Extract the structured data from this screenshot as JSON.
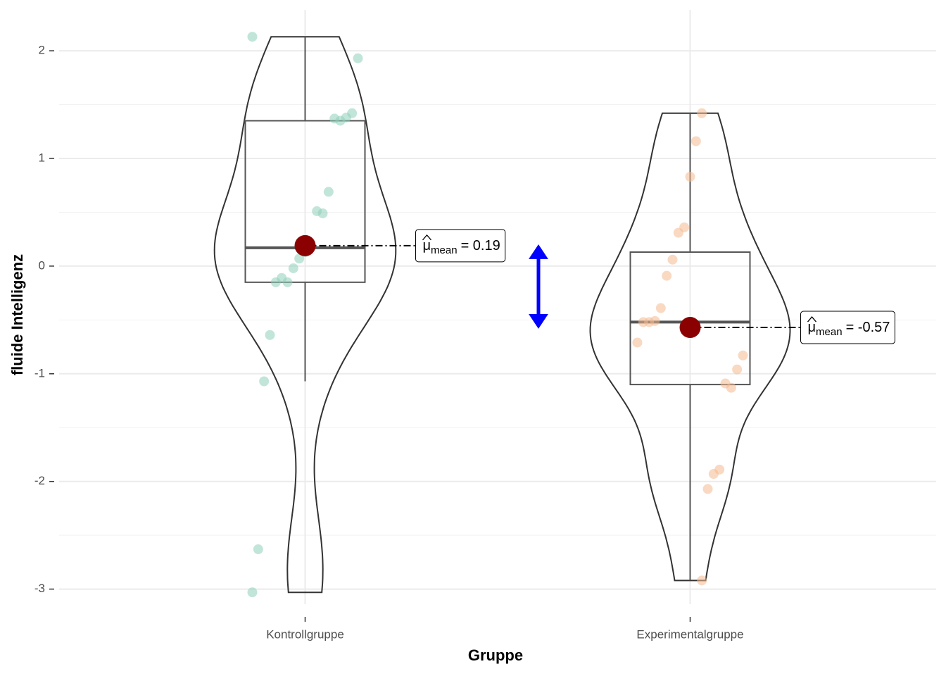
{
  "chart_data": {
    "type": "violin",
    "x_label": "Gruppe",
    "y_label": "fluide Intelligenz",
    "categories": [
      "Kontrollgruppe",
      "Experimentalgruppe"
    ],
    "ylim": [
      -3.14,
      2.38
    ],
    "yticks": [
      -3,
      -2,
      -1,
      0,
      1,
      2
    ],
    "grid": true,
    "mean_symbol": "μ",
    "mean_subscript": "mean",
    "mean_color": "#8b0000",
    "arrow_color": "#0000ff",
    "series": [
      {
        "color": "#8fcfb9",
        "values": [
          2.13,
          1.93,
          1.42,
          1.38,
          1.35,
          1.37,
          0.69,
          0.49,
          0.51,
          0.19,
          0.13,
          0.07,
          -0.02,
          -0.15,
          -0.11,
          -0.15,
          -0.64,
          -1.07,
          -2.63,
          -3.03
        ],
        "box": {
          "min": -1.07,
          "q1": -0.15,
          "median": 0.17,
          "q3": 1.35,
          "max": 2.13
        },
        "mean": 0.19,
        "mean_label": "= 0.19"
      },
      {
        "color": "#f4b98f",
        "values": [
          1.42,
          1.16,
          0.83,
          0.36,
          0.31,
          0.06,
          -0.09,
          -0.39,
          -0.51,
          -0.52,
          -0.52,
          -0.71,
          -0.83,
          -0.96,
          -1.13,
          -1.09,
          -1.89,
          -1.93,
          -2.07,
          -2.92
        ],
        "box": {
          "min": -2.92,
          "q1": -1.1,
          "median": -0.52,
          "q3": 0.13,
          "max": 1.42
        },
        "mean": -0.57,
        "mean_label": "= -0.57"
      }
    ]
  }
}
